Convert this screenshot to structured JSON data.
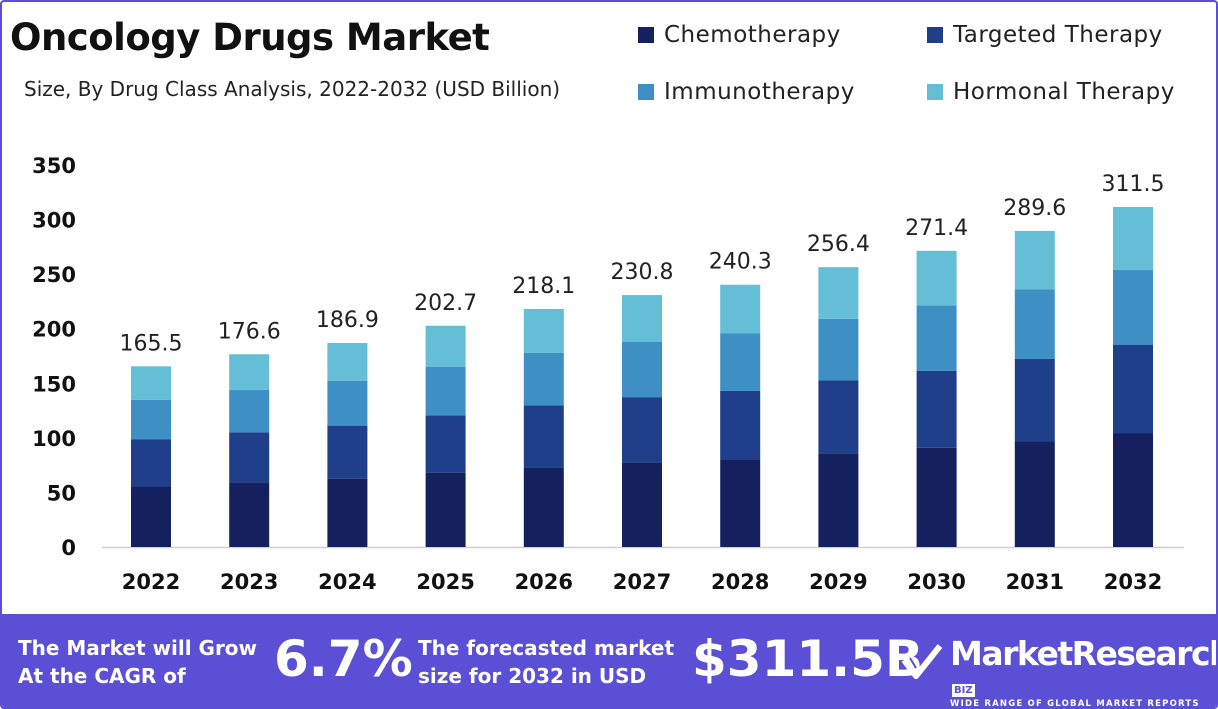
{
  "title": "Oncology Drugs Market",
  "subtitle": "Size, By Drug Class Analysis, 2022-2032 (USD Billion)",
  "colors": {
    "chemotherapy": "#15205e",
    "targeted": "#203f8a",
    "immunotherapy": "#3d8fc4",
    "hormonal": "#63bed6",
    "footer": "#5b4fd6"
  },
  "chart_data": {
    "type": "bar",
    "stacked": true,
    "categories": [
      "2022",
      "2023",
      "2024",
      "2025",
      "2026",
      "2027",
      "2028",
      "2029",
      "2030",
      "2031",
      "2032"
    ],
    "series": [
      {
        "name": "Chemotherapy",
        "values": [
          55.5,
          59.2,
          62.6,
          67.9,
          73.1,
          77.3,
          80.5,
          85.9,
          90.9,
          97.0,
          104.4
        ]
      },
      {
        "name": "Targeted Therapy",
        "values": [
          43.0,
          45.9,
          48.6,
          52.7,
          56.7,
          60.0,
          62.5,
          66.7,
          70.6,
          75.3,
          81.0
        ]
      },
      {
        "name": "Immunotherapy",
        "values": [
          36.4,
          38.9,
          41.1,
          44.6,
          48.0,
          50.8,
          52.9,
          56.4,
          59.7,
          63.7,
          68.5
        ]
      },
      {
        "name": "Hormonal Therapy",
        "values": [
          30.6,
          32.6,
          34.6,
          37.5,
          40.3,
          42.7,
          44.4,
          47.4,
          50.2,
          53.6,
          57.6
        ]
      }
    ],
    "totals": [
      "165.5",
      "176.6",
      "186.9",
      "202.7",
      "218.1",
      "230.8",
      "240.3",
      "256.4",
      "271.4",
      "289.6",
      "311.5"
    ],
    "yticks": [
      "0",
      "50",
      "100",
      "150",
      "200",
      "250",
      "300",
      "350"
    ],
    "ylim": [
      0,
      350
    ],
    "grid": false,
    "legend_position": "top-right"
  },
  "footer": {
    "cagr_text_1": "The Market will Grow",
    "cagr_text_2": "At the CAGR of",
    "cagr_value": "6.7%",
    "forecast_text_1": "The forecasted market",
    "forecast_text_2": "size for 2032 in USD",
    "forecast_value": "$311.5B",
    "brand_name": "MarketResearch",
    "brand_biz": "BIZ",
    "brand_tagline": "WIDE RANGE OF GLOBAL MARKET REPORTS"
  }
}
